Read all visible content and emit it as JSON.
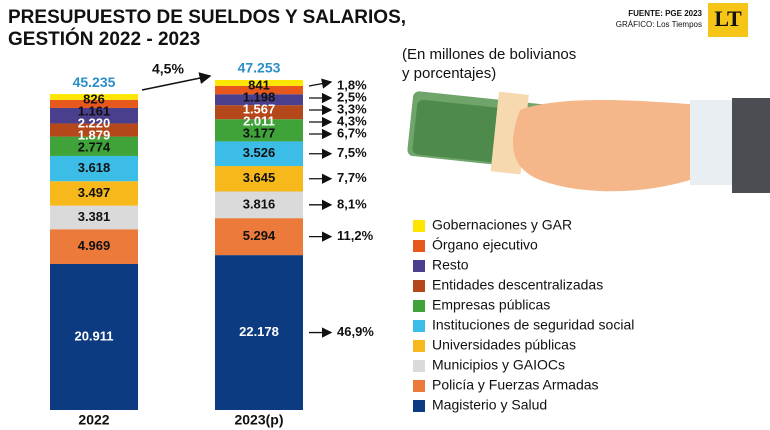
{
  "chart_data": {
    "type": "stacked-bar",
    "title": [
      "PRESUPUESTO DE SUELDOS Y SALARIOS,",
      "GESTIÓN 2022 - 2023"
    ],
    "source": [
      "FUENTE: PGE 2023",
      "GRÁFICO: Los Tiempos"
    ],
    "logo": "LT",
    "subtitle": [
      "(En millones de bolivianos",
      "y porcentajes)"
    ],
    "categories": [
      "2022",
      "2023(p)"
    ],
    "totals": {
      "values": [
        45235,
        47253
      ],
      "value_labels": [
        "45.235",
        "47.253"
      ]
    },
    "growth_label": "4,5%",
    "series": [
      {
        "name": "Magisterio y Salud",
        "color": "#0d3b82",
        "values": [
          20911,
          22178
        ],
        "value_labels": [
          "20.911",
          "22.178"
        ],
        "share": 46.9,
        "share_label": "46,9%"
      },
      {
        "name": "Policía y Fuerzas Armadas",
        "color": "#ec7a3a",
        "values": [
          4969,
          5294
        ],
        "value_labels": [
          "4.969",
          "5.294"
        ],
        "share": 11.2,
        "share_label": "11,2%"
      },
      {
        "name": "Municipios y GAIOCs",
        "color": "#dadada",
        "values": [
          3381,
          3816
        ],
        "value_labels": [
          "3.381",
          "3.816"
        ],
        "share": 8.1,
        "share_label": "8,1%"
      },
      {
        "name": "Universidades públicas",
        "color": "#f7b81c",
        "values": [
          3497,
          3645
        ],
        "value_labels": [
          "3.497",
          "3.645"
        ],
        "share": 7.7,
        "share_label": "7,7%"
      },
      {
        "name": "Instituciones de seguridad social",
        "color": "#3bbde8",
        "values": [
          3618,
          3526
        ],
        "value_labels": [
          "3.618",
          "3.526"
        ],
        "share": 7.5,
        "share_label": "7,5%"
      },
      {
        "name": "Empresas públicas",
        "color": "#3fa33a",
        "values": [
          2774,
          3177
        ],
        "value_labels": [
          "2.774",
          "3.177"
        ],
        "share": 6.7,
        "share_label": "6,7%"
      },
      {
        "name": "Entidades descentralizadas",
        "color": "#b5481b",
        "values": [
          1879,
          2011
        ],
        "value_labels": [
          "1.879",
          "2.011"
        ],
        "share": 4.3,
        "share_label": "4,3%"
      },
      {
        "name": "Resto",
        "color": "#4a3f8c",
        "values": [
          2220,
          1567
        ],
        "value_labels": [
          "2.220",
          "1.567"
        ],
        "share": 3.3,
        "share_label": "3,3%"
      },
      {
        "name": "Órgano ejecutivo",
        "color": "#e8581c",
        "values": [
          1161,
          1198
        ],
        "value_labels": [
          "1.161",
          "1.198"
        ],
        "share": 2.5,
        "share_label": "2,5%"
      },
      {
        "name": "Gobernaciones y GAR",
        "color": "#ffe600",
        "values": [
          826,
          841
        ],
        "value_labels": [
          "826",
          "841"
        ],
        "share": 1.8,
        "share_label": "1,8%"
      }
    ]
  }
}
